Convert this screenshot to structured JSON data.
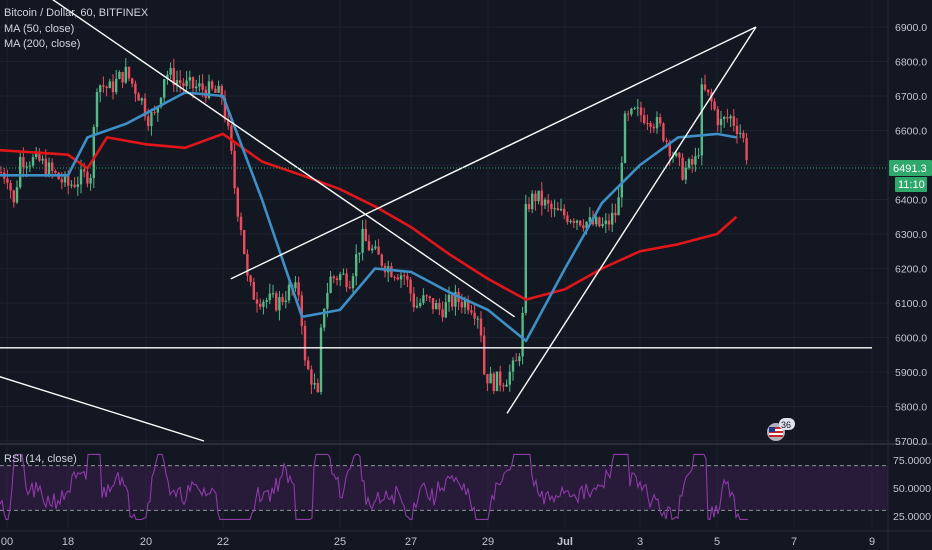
{
  "header": {
    "symbol_line": "Bitcoin / Dollar, 60, BITFINEX",
    "ma50_label": "MA (50, close)",
    "ma200_label": "MA (200, close)"
  },
  "rsi": {
    "label": "RSI (14, close)",
    "ticks": [
      "75.0000",
      "50.0000",
      "25.0000"
    ]
  },
  "price_badge": {
    "price": "6491.3",
    "countdown": "11:10"
  },
  "event_badge": {
    "count": "36",
    "icon": "us-flag-icon"
  },
  "colors": {
    "background": "#131722",
    "grid": "#1e2230",
    "candle_up": "#53b987",
    "candle_down": "#eb4d5c",
    "ma50": "#3d8fc5",
    "ma200": "#e1161b",
    "rsi_line": "#8e3aa8",
    "rsi_band": "#3b1f4f",
    "price_badge": "#2ea86b"
  },
  "chart_data": {
    "type": "candlestick",
    "title": "Bitcoin / Dollar, 60, BITFINEX",
    "y_ticks": [
      "6900.0",
      "6800.0",
      "6700.0",
      "6600.0",
      "6500.0",
      "6400.0",
      "6300.0",
      "6200.0",
      "6100.0",
      "6000.0",
      "5900.0",
      "5800.0",
      "5700.0"
    ],
    "ylim": [
      5690,
      6930
    ],
    "x_ticks": [
      "00",
      "18",
      "20",
      "22",
      "25",
      "27",
      "29",
      "Jul",
      "3",
      "5",
      "7",
      "9"
    ],
    "series": [
      {
        "name": "MA (50, close)",
        "points": [
          [
            "17",
            6470
          ],
          [
            "18",
            6470
          ],
          [
            "18.5",
            6580
          ],
          [
            "19.5",
            6620
          ],
          [
            "20",
            6650
          ],
          [
            "20.5",
            6680
          ],
          [
            "21",
            6710
          ],
          [
            "22",
            6700
          ],
          [
            "23",
            6400
          ],
          [
            "24",
            6060
          ],
          [
            "24.5",
            6070
          ],
          [
            "25",
            6080
          ],
          [
            "26",
            6200
          ],
          [
            "27",
            6190
          ],
          [
            "28",
            6130
          ],
          [
            "29",
            6080
          ],
          [
            "30",
            5990
          ],
          [
            "Jul 1",
            6200
          ],
          [
            "Jul 2",
            6390
          ],
          [
            "Jul 3",
            6500
          ],
          [
            "Jul 4",
            6580
          ],
          [
            "Jul 5",
            6590
          ],
          [
            "Jul 5.5",
            6580
          ]
        ]
      },
      {
        "name": "MA (200, close)",
        "points": [
          [
            "17",
            6545
          ],
          [
            "18",
            6530
          ],
          [
            "18.5",
            6490
          ],
          [
            "19",
            6580
          ],
          [
            "20",
            6560
          ],
          [
            "21",
            6550
          ],
          [
            "22",
            6590
          ],
          [
            "23",
            6510
          ],
          [
            "24",
            6470
          ],
          [
            "25",
            6430
          ],
          [
            "26",
            6380
          ],
          [
            "27",
            6320
          ],
          [
            "28",
            6240
          ],
          [
            "29",
            6170
          ],
          [
            "30",
            6110
          ],
          [
            "Jul 1",
            6140
          ],
          [
            "Jul 2",
            6200
          ],
          [
            "Jul 3",
            6250
          ],
          [
            "Jul 4",
            6270
          ],
          [
            "Jul 5",
            6300
          ],
          [
            "Jul 5.5",
            6350
          ]
        ]
      }
    ],
    "trendlines": [
      {
        "from": [
          "17.8",
          6980
        ],
        "to": [
          "29.7",
          6060
        ]
      },
      {
        "from": [
          "22.2",
          6170
        ],
        "to": [
          "Jul 6",
          6900
        ]
      },
      {
        "from": [
          "29.5",
          5780
        ],
        "to": [
          "Jul 6",
          6900
        ]
      },
      {
        "from": [
          "16",
          5950
        ],
        "to": [
          "21.5",
          5700
        ]
      },
      {
        "from": [
          "16",
          5970
        ],
        "to": [
          "Jul 9",
          5970
        ]
      }
    ],
    "last_price": 6491.3,
    "rsi_levels": [
      70,
      30
    ],
    "rsi_ticks": [
      75,
      50,
      25
    ]
  }
}
